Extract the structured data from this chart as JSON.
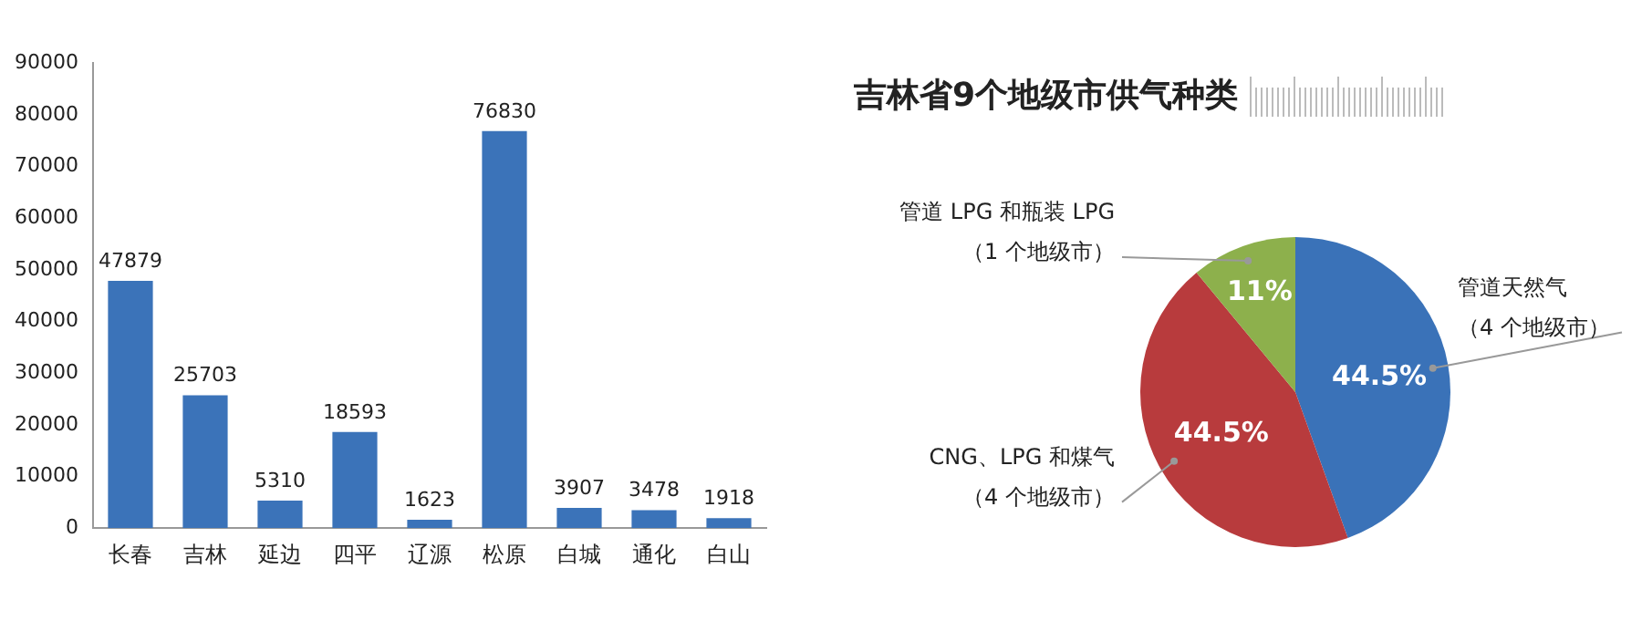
{
  "chart_data": [
    {
      "type": "bar",
      "categories": [
        "长春",
        "吉林",
        "延边",
        "四平",
        "辽源",
        "松原",
        "白城",
        "通化",
        "白山"
      ],
      "values": [
        47879,
        25703,
        5310,
        18593,
        1623,
        76830,
        3907,
        3478,
        1918
      ],
      "color": "#3b73b9",
      "ylim": [
        0,
        90000
      ],
      "yticks": [
        0,
        10000,
        20000,
        30000,
        40000,
        50000,
        60000,
        70000,
        80000,
        90000
      ],
      "grid": false,
      "legend": false,
      "data_labels": true
    },
    {
      "type": "pie",
      "title": "吉林省9个地级市供气种类",
      "categories": [
        "管道天然气（4 个地级市）",
        "CNG、LPG 和煤气（4 个地级市）",
        "管道 LPG 和瓶装 LPG（1 个地级市）"
      ],
      "values": [
        44.5,
        44.5,
        11
      ],
      "colors": [
        "#3a72b8",
        "#b83b3d",
        "#8db04c"
      ],
      "value_labels": [
        "44.5%",
        "44.5%",
        "11%"
      ],
      "legend": false
    }
  ]
}
